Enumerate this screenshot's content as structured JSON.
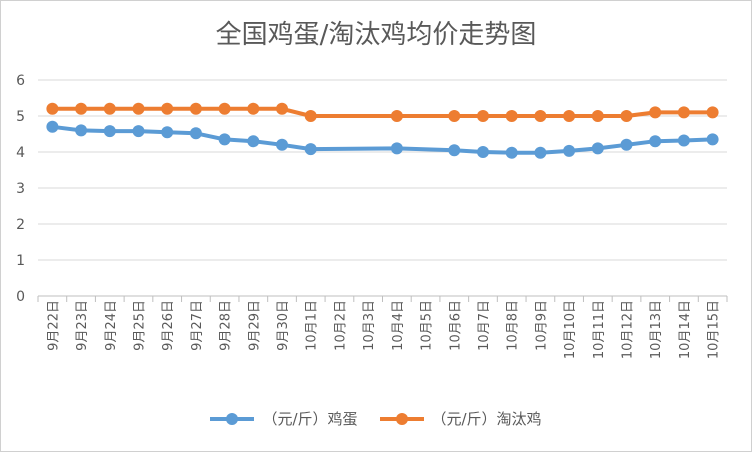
{
  "chart_data": {
    "type": "line",
    "title": "全国鸡蛋/淘汰鸡均价走势图",
    "categories": [
      "9月22日",
      "9月23日",
      "9月24日",
      "9月25日",
      "9月26日",
      "9月27日",
      "9月28日",
      "9月29日",
      "9月30日",
      "10月1日",
      "10月2日",
      "10月3日",
      "10月4日",
      "10月5日",
      "10月6日",
      "10月7日",
      "10月8日",
      "10月9日",
      "10月10日",
      "10月11日",
      "10月12日",
      "10月13日",
      "10月14日",
      "10月15日"
    ],
    "series": [
      {
        "name": "（元/斤）鸡蛋",
        "color": "#5B9BD5",
        "values": [
          4.7,
          4.6,
          4.58,
          4.58,
          4.55,
          4.52,
          4.35,
          4.3,
          4.2,
          4.08,
          null,
          null,
          4.1,
          null,
          4.05,
          4.0,
          3.98,
          3.98,
          4.03,
          4.1,
          4.2,
          4.3,
          4.32,
          4.35
        ]
      },
      {
        "name": "（元/斤）淘汰鸡",
        "color": "#ED7D31",
        "values": [
          5.2,
          5.2,
          5.2,
          5.2,
          5.2,
          5.2,
          5.2,
          5.2,
          5.2,
          5.0,
          null,
          null,
          5.0,
          null,
          5.0,
          5.0,
          5.0,
          5.0,
          5.0,
          5.0,
          5.0,
          5.1,
          5.1,
          5.1
        ]
      }
    ],
    "yticks": [
      "0",
      "1",
      "2",
      "3",
      "4",
      "5",
      "6"
    ],
    "ylim": [
      0,
      6
    ],
    "grid": true,
    "legend_position": "bottom",
    "xlabel": "",
    "ylabel": ""
  }
}
